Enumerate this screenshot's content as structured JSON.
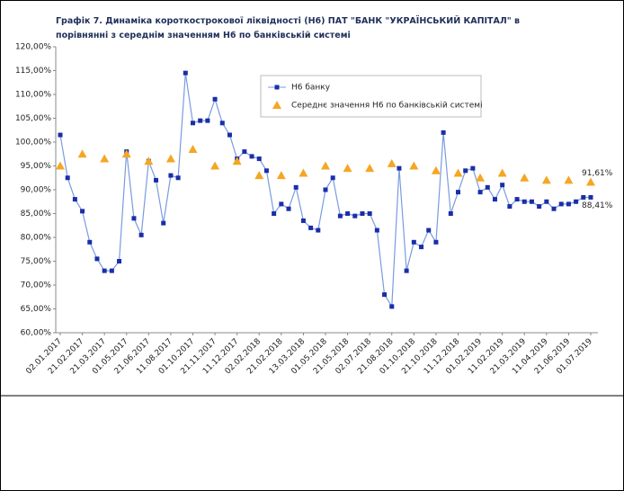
{
  "chart_data": {
    "type": "line",
    "title": "Графік 7. Динаміка короткострокової ліквідності (Н6) ПАТ \"БАНК \"УКРАЇНСЬКИЙ КАПІТАЛ\" в",
    "subtitle": "порівнянні з середнім значенням Н6 по банківській системі",
    "categories": [
      "02.01.2017",
      null,
      null,
      "21.02.2017",
      null,
      null,
      "21.03.2017",
      null,
      null,
      "01.05.2017",
      null,
      null,
      "21.06.2017",
      null,
      null,
      "11.08.2017",
      null,
      null,
      "01.10.2017",
      null,
      null,
      "21.11.2017",
      null,
      null,
      "11.12.2017",
      null,
      null,
      "02.02.2018",
      null,
      null,
      "21.02.2018",
      null,
      null,
      "13.03.2018",
      null,
      null,
      "01.05.2018",
      null,
      null,
      "21.05.2018",
      null,
      null,
      "02.07.2018",
      null,
      null,
      "21.08.2018",
      null,
      null,
      "01.10.2018",
      null,
      null,
      "21.10.2018",
      null,
      null,
      "11.12.2018",
      null,
      null,
      "01.02.2019",
      null,
      null,
      "11.02.2019",
      null,
      null,
      "21.03.2019",
      null,
      null,
      "11.04.2019",
      null,
      null,
      "21.06.2019",
      null,
      null,
      "01.07.2019"
    ],
    "series": [
      {
        "name": "Н6 банку",
        "color": "#1a2ea8",
        "line": true,
        "values": [
          101.5,
          92.5,
          88,
          85.5,
          79,
          75.5,
          73,
          73,
          75,
          98,
          84,
          80.5,
          96,
          92,
          83,
          93,
          92.5,
          114.5,
          104,
          104.5,
          104.5,
          109,
          104,
          101.5,
          96.5,
          98,
          97,
          96.5,
          94,
          85,
          87,
          86,
          90.5,
          83.5,
          82,
          81.5,
          90,
          92.5,
          84.5,
          85,
          84.5,
          85,
          85,
          81.5,
          68,
          65.5,
          94.5,
          73,
          79,
          78,
          81.5,
          79,
          102,
          85,
          89.5,
          94,
          94.5,
          89.5,
          90.5,
          88,
          91,
          86.5,
          88,
          87.5,
          87.5,
          86.5,
          87.5,
          86,
          87,
          87,
          87.5,
          88.4,
          88.41
        ],
        "value_labels": [
          null,
          null,
          null,
          null,
          null,
          null,
          null,
          null,
          null,
          null,
          null,
          null,
          null,
          null,
          null,
          null,
          null,
          null,
          null,
          null,
          null,
          null,
          null,
          null,
          null,
          null,
          null,
          null,
          null,
          null,
          null,
          null,
          null,
          null,
          null,
          null,
          null,
          null,
          null,
          null,
          null,
          null,
          null,
          null,
          null,
          null,
          null,
          null,
          null,
          null,
          null,
          null,
          null,
          null,
          null,
          null,
          null,
          null,
          null,
          null,
          null,
          null,
          null,
          null,
          null,
          null,
          null,
          null,
          null,
          null,
          null,
          null,
          "88,41%"
        ]
      },
      {
        "name": "Середнє значення Н6 по банківській системі",
        "color": "#f5a623",
        "line": false,
        "values": [
          95,
          null,
          null,
          97.5,
          null,
          null,
          96.5,
          null,
          null,
          97.5,
          null,
          null,
          96,
          null,
          null,
          96.5,
          null,
          null,
          98.5,
          null,
          null,
          95,
          null,
          null,
          96,
          null,
          null,
          93,
          null,
          null,
          93,
          null,
          null,
          93.5,
          null,
          null,
          95,
          null,
          null,
          94.5,
          null,
          null,
          94.5,
          null,
          null,
          95.5,
          null,
          null,
          95,
          null,
          null,
          94,
          null,
          null,
          93.5,
          null,
          null,
          92.5,
          null,
          null,
          93.5,
          null,
          null,
          92.5,
          null,
          null,
          92,
          null,
          null,
          92,
          null,
          null,
          91.61
        ],
        "value_labels": [
          null,
          null,
          null,
          null,
          null,
          null,
          null,
          null,
          null,
          null,
          null,
          null,
          null,
          null,
          null,
          null,
          null,
          null,
          null,
          null,
          null,
          null,
          null,
          null,
          null,
          null,
          null,
          null,
          null,
          null,
          null,
          null,
          null,
          null,
          null,
          null,
          null,
          null,
          null,
          null,
          null,
          null,
          null,
          null,
          null,
          null,
          null,
          null,
          null,
          null,
          null,
          null,
          null,
          null,
          null,
          null,
          null,
          null,
          null,
          null,
          null,
          null,
          null,
          null,
          null,
          null,
          null,
          null,
          null,
          null,
          null,
          null,
          "91,61%"
        ]
      }
    ],
    "ylim": [
      60,
      120
    ],
    "yticks": [
      {
        "value": 60,
        "label": "60,00%"
      },
      {
        "value": 65,
        "label": "65,00%"
      },
      {
        "value": 70,
        "label": "70,00%"
      },
      {
        "value": 75,
        "label": "75,00%"
      },
      {
        "value": 80,
        "label": "80,00%"
      },
      {
        "value": 85,
        "label": "85,00%"
      },
      {
        "value": 90,
        "label": "90,00%"
      },
      {
        "value": 95,
        "label": "95,00%"
      },
      {
        "value": 100,
        "label": "100,00%"
      },
      {
        "value": 105,
        "label": "105,00%"
      },
      {
        "value": 110,
        "label": "110,00%"
      },
      {
        "value": 115,
        "label": "115,00%"
      },
      {
        "value": 120,
        "label": "120,00%"
      }
    ],
    "grid": false,
    "legend": "upper right"
  }
}
